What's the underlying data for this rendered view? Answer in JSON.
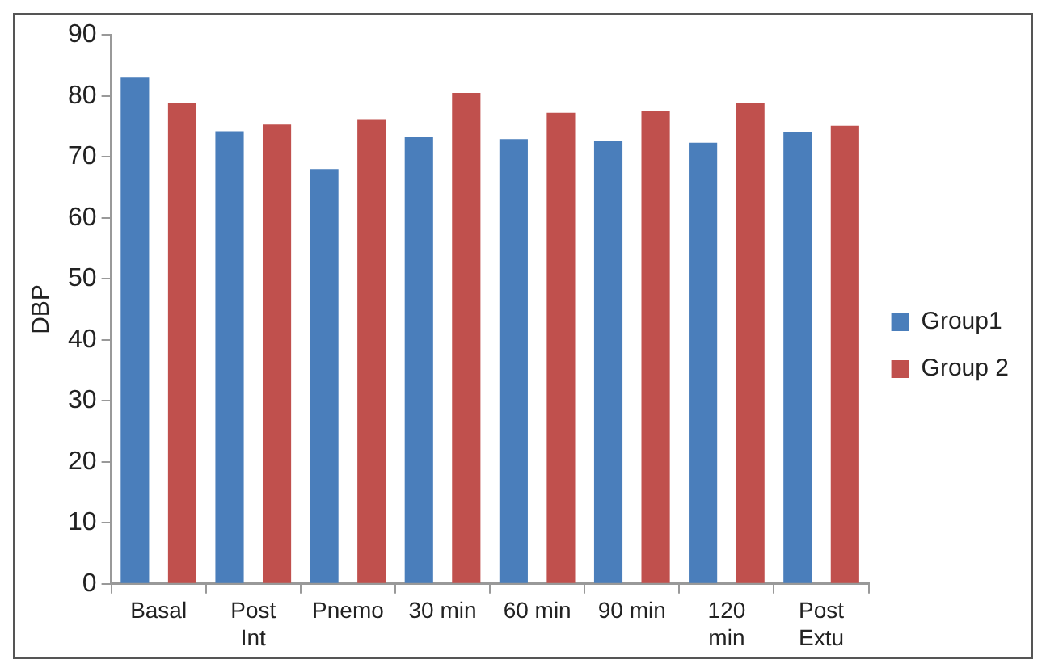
{
  "chart_data": {
    "type": "bar",
    "ylabel": "DBP",
    "categories": [
      "Basal",
      "Post Int",
      "Pnemo",
      "30 min",
      "60 min",
      "90 min",
      "120 min",
      "Post Extu"
    ],
    "series": [
      {
        "name": "Group1",
        "color": "#4a7ebb",
        "values": [
          83.1,
          74.2,
          68.0,
          73.2,
          72.9,
          72.6,
          72.3,
          74.0
        ]
      },
      {
        "name": "Group 2",
        "color": "#c0504d",
        "values": [
          78.9,
          75.3,
          76.2,
          80.5,
          77.2,
          77.5,
          78.9,
          75.1
        ]
      }
    ],
    "ylim": [
      0,
      90
    ],
    "yticks": [
      0,
      10,
      20,
      30,
      40,
      50,
      60,
      70,
      80,
      90
    ],
    "grid": false,
    "legend": "right"
  }
}
